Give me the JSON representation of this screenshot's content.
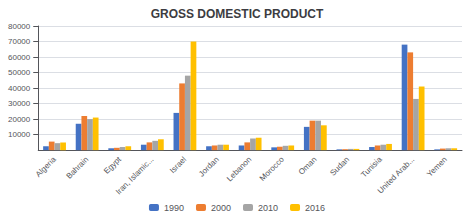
{
  "chart_data": {
    "type": "bar",
    "title": "GROSS DOMESTIC PRODUCT",
    "categories": [
      "Algeria",
      "Bahrain",
      "Egypt",
      "Iran, Islamic...",
      "Israel",
      "Jordan",
      "Lebanon",
      "Morocco",
      "Oman",
      "Sudan",
      "Tunisia",
      "United Arab...",
      "Yemen"
    ],
    "series": [
      {
        "name": "1990",
        "color": "#4472c4",
        "values": [
          2500,
          17000,
          1200,
          3500,
          24000,
          2500,
          3000,
          1800,
          15000,
          500,
          2000,
          68000,
          500
        ]
      },
      {
        "name": "2000",
        "color": "#ed7d31",
        "values": [
          5500,
          22000,
          1500,
          5000,
          43000,
          3000,
          5000,
          2200,
          19000,
          600,
          3000,
          63000,
          1000
        ]
      },
      {
        "name": "2010",
        "color": "#a5a5a5",
        "values": [
          4500,
          20000,
          2000,
          6000,
          48000,
          3500,
          7500,
          2800,
          19000,
          800,
          3500,
          33000,
          1200
        ]
      },
      {
        "name": "2016",
        "color": "#ffc000",
        "values": [
          5000,
          21000,
          2500,
          7000,
          70000,
          3500,
          8000,
          3000,
          16000,
          800,
          4000,
          41000,
          1200
        ]
      }
    ],
    "ylim": [
      0,
      80000
    ],
    "yticks": [
      10000,
      20000,
      30000,
      40000,
      50000,
      60000,
      70000,
      80000
    ],
    "grid": true,
    "legend": "bottom"
  }
}
